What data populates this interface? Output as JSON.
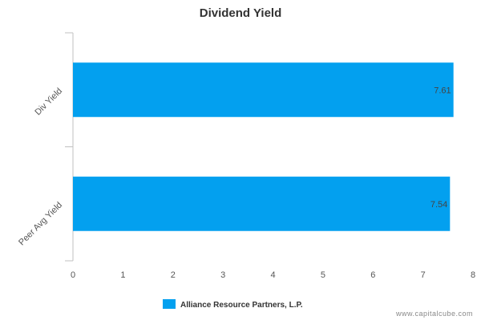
{
  "chart_data": {
    "type": "bar",
    "orientation": "horizontal",
    "title": "Dividend Yield",
    "categories": [
      "Div Yield",
      "Peer Avg Yield"
    ],
    "series": [
      {
        "name": "Alliance Resource Partners, L.P.",
        "values": [
          7.61,
          7.54
        ]
      }
    ],
    "data_labels": [
      "7.61",
      "7.54"
    ],
    "xlim": [
      0,
      8
    ],
    "x_ticks": [
      0,
      1,
      2,
      3,
      4,
      5,
      6,
      7,
      8
    ],
    "grid": false,
    "legend": "bottom-center",
    "colors": {
      "bar": "#03a0ef",
      "axis": "#c0c0c0"
    }
  },
  "footer": {
    "watermark": "www.capitalcube.com"
  }
}
